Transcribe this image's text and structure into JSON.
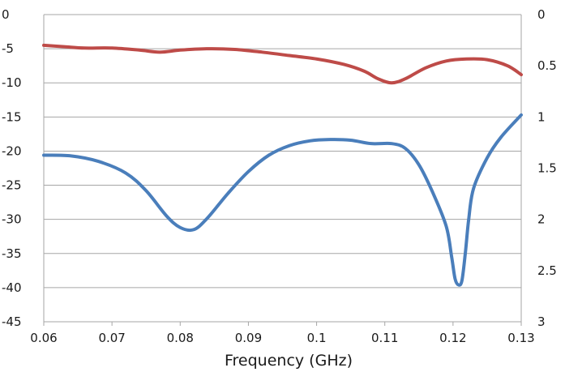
{
  "chart_data": {
    "type": "line",
    "title": "",
    "xlabel": "Frequency (GHz)",
    "ylabel": "",
    "y2label": "",
    "grid": "horizontal",
    "xlim": [
      0.06,
      0.13
    ],
    "ylim": [
      -45,
      0
    ],
    "y2lim": [
      3,
      0
    ],
    "x_ticks": [
      "0.06",
      "0.07",
      "0.08",
      "0.09",
      "0.1",
      "0.11",
      "0.12",
      "0.13"
    ],
    "y_ticks": [
      "0",
      "-5",
      "-10",
      "-15",
      "-20",
      "-25",
      "-30",
      "-35",
      "-40",
      "-45"
    ],
    "y2_ticks": [
      "0",
      "0.5",
      "1",
      "1.5",
      "2",
      "2.5",
      "3"
    ],
    "series": [
      {
        "axis": "left",
        "color": "#4a7ebb",
        "points": [
          [
            0.06,
            -20.6
          ],
          [
            0.064,
            -20.7
          ],
          [
            0.068,
            -21.5
          ],
          [
            0.072,
            -23.2
          ],
          [
            0.075,
            -25.8
          ],
          [
            0.078,
            -29.5
          ],
          [
            0.08,
            -31.2
          ],
          [
            0.082,
            -31.5
          ],
          [
            0.084,
            -29.8
          ],
          [
            0.087,
            -26.2
          ],
          [
            0.09,
            -23.0
          ],
          [
            0.093,
            -20.6
          ],
          [
            0.096,
            -19.2
          ],
          [
            0.099,
            -18.5
          ],
          [
            0.102,
            -18.3
          ],
          [
            0.105,
            -18.4
          ],
          [
            0.108,
            -18.9
          ],
          [
            0.111,
            -18.9
          ],
          [
            0.113,
            -19.6
          ],
          [
            0.115,
            -22.0
          ],
          [
            0.117,
            -26.0
          ],
          [
            0.119,
            -31.0
          ],
          [
            0.1198,
            -35.5
          ],
          [
            0.1203,
            -38.7
          ],
          [
            0.1208,
            -39.6
          ],
          [
            0.1213,
            -39.0
          ],
          [
            0.1218,
            -35.0
          ],
          [
            0.1223,
            -30.0
          ],
          [
            0.123,
            -25.5
          ],
          [
            0.125,
            -21.0
          ],
          [
            0.127,
            -18.0
          ],
          [
            0.13,
            -14.7
          ]
        ]
      },
      {
        "axis": "left",
        "color": "#be4b48",
        "points": [
          [
            0.06,
            -4.5
          ],
          [
            0.063,
            -4.7
          ],
          [
            0.066,
            -4.9
          ],
          [
            0.07,
            -4.9
          ],
          [
            0.074,
            -5.2
          ],
          [
            0.077,
            -5.5
          ],
          [
            0.08,
            -5.2
          ],
          [
            0.084,
            -5.0
          ],
          [
            0.088,
            -5.1
          ],
          [
            0.092,
            -5.5
          ],
          [
            0.096,
            -6.0
          ],
          [
            0.1,
            -6.5
          ],
          [
            0.104,
            -7.3
          ],
          [
            0.107,
            -8.3
          ],
          [
            0.109,
            -9.4
          ],
          [
            0.111,
            -10.0
          ],
          [
            0.113,
            -9.4
          ],
          [
            0.116,
            -7.8
          ],
          [
            0.119,
            -6.8
          ],
          [
            0.122,
            -6.5
          ],
          [
            0.125,
            -6.6
          ],
          [
            0.128,
            -7.5
          ],
          [
            0.13,
            -8.8
          ]
        ]
      }
    ]
  }
}
